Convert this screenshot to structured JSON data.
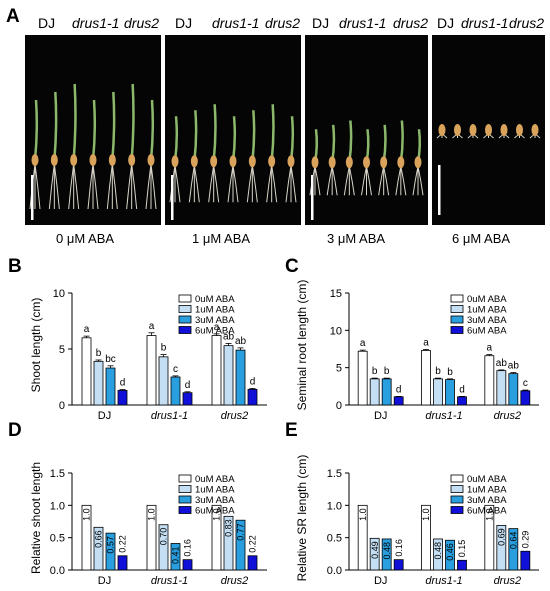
{
  "panel_letters": {
    "a": "A",
    "b": "B",
    "c": "C",
    "d": "D",
    "e": "E"
  },
  "photo_panel": {
    "genotype_labels": [
      "DJ",
      "drus1-1",
      "drus2"
    ],
    "conditions": [
      "0 μM ABA",
      "1 μM ABA",
      "3 μM ABA",
      "6 μM ABA"
    ],
    "background_color": "#050505"
  },
  "colors": {
    "series": [
      "#ffffff",
      "#c4dff3",
      "#2a9fe0",
      "#1010d8"
    ],
    "outline": "#000000"
  },
  "chart_data": [
    {
      "id": "B",
      "type": "bar",
      "categories": [
        "DJ",
        "drus1-1",
        "drus2"
      ],
      "series": [
        {
          "name": "0uM  ABA",
          "values": [
            6.0,
            6.2,
            6.2
          ],
          "errors": [
            0.15,
            0.25,
            0.15
          ],
          "letters": [
            "a",
            "a",
            "a"
          ]
        },
        {
          "name": "1uM  ABA",
          "values": [
            3.9,
            4.3,
            5.3
          ],
          "errors": [
            0.12,
            0.2,
            0.2
          ],
          "letters": [
            "b",
            "b",
            "ab"
          ]
        },
        {
          "name": "3uM  ABA",
          "values": [
            3.3,
            2.5,
            4.9
          ],
          "errors": [
            0.2,
            0.1,
            0.2
          ],
          "letters": [
            "bc",
            "c",
            "ab"
          ]
        },
        {
          "name": "6uM  ABA",
          "values": [
            1.3,
            1.1,
            1.4
          ],
          "errors": [
            0.08,
            0.08,
            0.08
          ],
          "letters": [
            "d",
            "d",
            "d"
          ]
        }
      ],
      "ylabel": "Shoot length (cm)",
      "ylim": [
        0,
        10
      ],
      "yticks": [
        "0",
        "5",
        "10"
      ],
      "grid": false,
      "legend_position": "top-right"
    },
    {
      "id": "C",
      "type": "bar",
      "categories": [
        "DJ",
        "drus1-1",
        "drus2"
      ],
      "series": [
        {
          "name": "0uM  ABA",
          "values": [
            7.2,
            7.3,
            6.6
          ],
          "errors": [
            0.15,
            0.15,
            0.15
          ],
          "letters": [
            "a",
            "a",
            "a"
          ]
        },
        {
          "name": "1uM  ABA",
          "values": [
            3.5,
            3.5,
            4.6
          ],
          "errors": [
            0.1,
            0.1,
            0.1
          ],
          "letters": [
            "b",
            "b",
            "ab"
          ]
        },
        {
          "name": "3uM  ABA",
          "values": [
            3.5,
            3.4,
            4.2
          ],
          "errors": [
            0.1,
            0.1,
            0.15
          ],
          "letters": [
            "b",
            "b",
            "ab"
          ]
        },
        {
          "name": "6uM  ABA",
          "values": [
            1.1,
            1.1,
            1.9
          ],
          "errors": [
            0.05,
            0.05,
            0.1
          ],
          "letters": [
            "d",
            "d",
            "c"
          ]
        }
      ],
      "ylabel": "Seminal root length (cm)",
      "ylim": [
        0,
        15
      ],
      "yticks": [
        "0",
        "5",
        "10",
        "15"
      ],
      "grid": false,
      "legend_position": "top-right"
    },
    {
      "id": "D",
      "type": "bar",
      "categories": [
        "DJ",
        "drus1-1",
        "drus2"
      ],
      "series": [
        {
          "name": "0uM  ABA",
          "values": [
            1.0,
            1.0,
            1.0
          ],
          "labels": [
            "1.0",
            "1.0",
            "1.0"
          ]
        },
        {
          "name": "1uM  ABA",
          "values": [
            0.66,
            0.7,
            0.83
          ],
          "labels": [
            "0.66",
            "0.70",
            "0.83"
          ]
        },
        {
          "name": "3uM  ABA",
          "values": [
            0.57,
            0.41,
            0.77
          ],
          "labels": [
            "0.57",
            "0.41",
            "0.77"
          ]
        },
        {
          "name": "6uM  ABA",
          "values": [
            0.22,
            0.16,
            0.22
          ],
          "labels": [
            "0.22",
            "0.16",
            "0.22"
          ]
        }
      ],
      "ylabel": "Relative shoot length",
      "ylim": [
        0,
        1.5
      ],
      "yticks": [
        "0.0",
        "0.5",
        "1.0",
        "1.5"
      ],
      "grid": false,
      "legend_position": "top-right"
    },
    {
      "id": "E",
      "type": "bar",
      "categories": [
        "DJ",
        "drus1-1",
        "drus2"
      ],
      "series": [
        {
          "name": "0uM  ABA",
          "values": [
            1.0,
            1.0,
            1.0
          ],
          "labels": [
            "1.0",
            "1.0",
            "1.0"
          ]
        },
        {
          "name": "1uM  ABA",
          "values": [
            0.49,
            0.48,
            0.69
          ],
          "labels": [
            "0.49",
            "0.48",
            "0.69"
          ]
        },
        {
          "name": "3uM  ABA",
          "values": [
            0.48,
            0.46,
            0.64
          ],
          "labels": [
            "0.48",
            "0.46",
            "0.64"
          ]
        },
        {
          "name": "6uM  ABA",
          "values": [
            0.16,
            0.15,
            0.29
          ],
          "labels": [
            "0.16",
            "0.15",
            "0.29"
          ]
        }
      ],
      "ylabel": "Relative SR length (cm)",
      "ylim": [
        0,
        1.5
      ],
      "yticks": [
        "0.0",
        "0.5",
        "1.0",
        "1.5"
      ],
      "grid": false,
      "legend_position": "top-right"
    }
  ]
}
